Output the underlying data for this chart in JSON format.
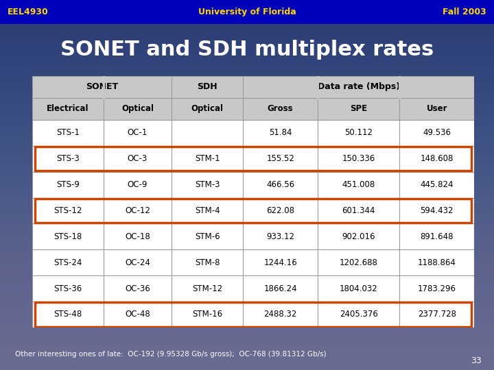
{
  "header_bar_color": "#0000BB",
  "header_text_color": "#FFD700",
  "header_left": "EEL4930",
  "header_center": "University of Florida",
  "header_right": "Fall 2003",
  "title": "SONET and SDH multiplex rates",
  "title_color": "#FFFFFF",
  "highlight_color": "#CC4400",
  "footer_text": "Other interesting ones of late:  OC-192 (9.95328 Gb/s gross);  OC-768 (39.81312 Gb/s)",
  "footer_number": "33",
  "col_headers_row2": [
    "Electrical",
    "Optical",
    "Optical",
    "Gross",
    "SPE",
    "User"
  ],
  "rows": [
    [
      "STS-1",
      "OC-1",
      "",
      "51.84",
      "50.112",
      "49.536",
      false
    ],
    [
      "STS-3",
      "OC-3",
      "STM-1",
      "155.52",
      "150.336",
      "148.608",
      true
    ],
    [
      "STS-9",
      "OC-9",
      "STM-3",
      "466.56",
      "451.008",
      "445.824",
      false
    ],
    [
      "STS-12",
      "OC-12",
      "STM-4",
      "622.08",
      "601.344",
      "594.432",
      true
    ],
    [
      "STS-18",
      "OC-18",
      "STM-6",
      "933.12",
      "902.016",
      "891.648",
      false
    ],
    [
      "STS-24",
      "OC-24",
      "STM-8",
      "1244.16",
      "1202.688",
      "1188.864",
      false
    ],
    [
      "STS-36",
      "OC-36",
      "STM-12",
      "1866.24",
      "1804.032",
      "1783.296",
      false
    ],
    [
      "STS-48",
      "OC-48",
      "STM-16",
      "2488.32",
      "2405.376",
      "2377.728",
      true
    ]
  ]
}
